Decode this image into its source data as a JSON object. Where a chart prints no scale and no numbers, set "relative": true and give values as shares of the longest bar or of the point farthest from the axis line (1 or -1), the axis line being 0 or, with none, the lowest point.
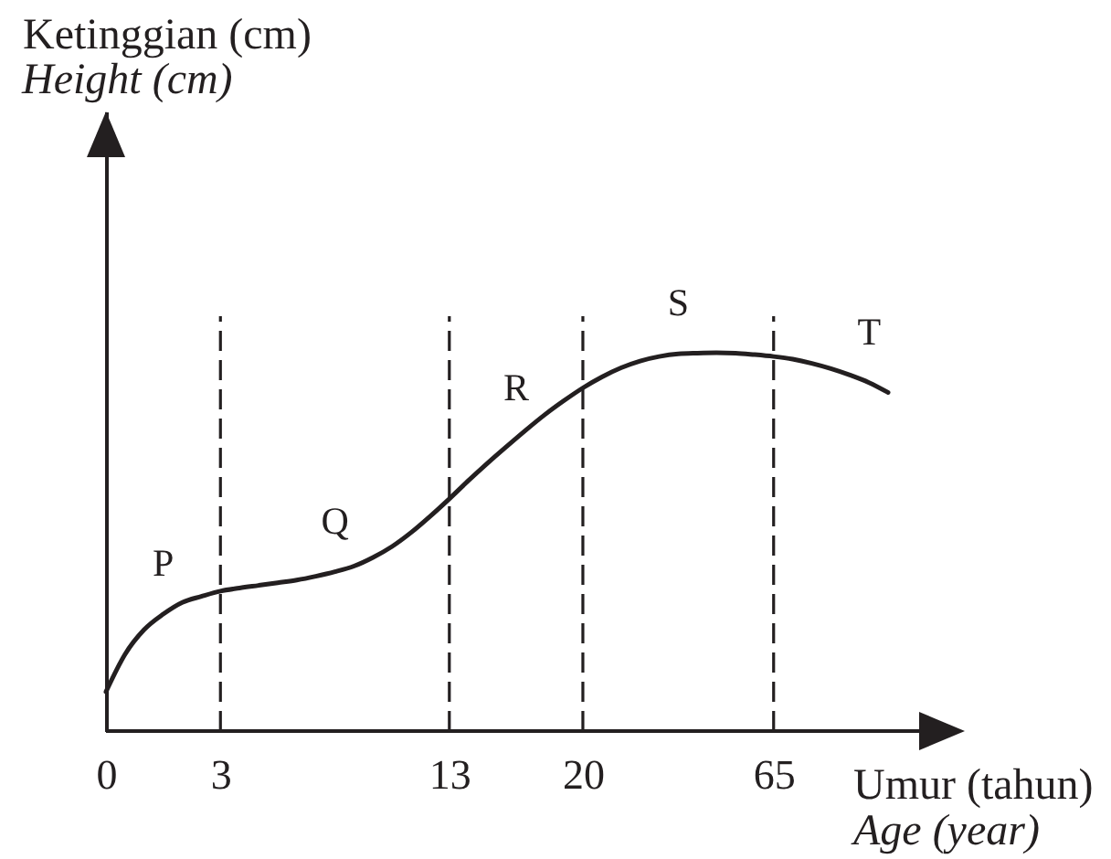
{
  "chart_data": {
    "type": "line",
    "relative": true,
    "xlabel": "Umur (tahun)\nAge (year)",
    "ylabel": "Ketinggian (cm)\nHeight (cm)",
    "categories": [
      "0",
      null,
      null,
      null,
      null,
      null,
      "3",
      null,
      null,
      null,
      null,
      null,
      null,
      null,
      null,
      null,
      null,
      null,
      "13",
      null,
      null,
      null,
      null,
      null,
      null,
      "20",
      null,
      null,
      null,
      null,
      null,
      null,
      null,
      null,
      null,
      "65",
      null,
      null,
      null,
      null,
      null,
      null
    ],
    "values": [
      0.104,
      0.203,
      0.268,
      0.309,
      0.34,
      0.356,
      0.37,
      0.378,
      0.385,
      0.392,
      0.399,
      0.409,
      0.421,
      0.436,
      0.459,
      0.488,
      0.525,
      0.568,
      0.614,
      0.662,
      0.708,
      0.752,
      0.795,
      0.836,
      0.873,
      0.907,
      0.936,
      0.96,
      0.978,
      0.99,
      0.997,
      0.999,
      1.0,
      0.999,
      0.995,
      0.99,
      0.983,
      0.972,
      0.958,
      0.941,
      0.921,
      0.895
    ],
    "color": "#231f20",
    "ref_lines": [
      {
        "axis": "x",
        "value": "3",
        "line_style": "dashed",
        "color": "#231f20"
      },
      {
        "axis": "x",
        "value": "13",
        "line_style": "dashed",
        "color": "#231f20"
      },
      {
        "axis": "x",
        "value": "20",
        "line_style": "dashed",
        "color": "#231f20"
      },
      {
        "axis": "x",
        "value": "65",
        "line_style": "dashed",
        "color": "#231f20"
      }
    ],
    "annotations": [
      "P",
      "Q",
      "R",
      "S",
      "T"
    ]
  }
}
